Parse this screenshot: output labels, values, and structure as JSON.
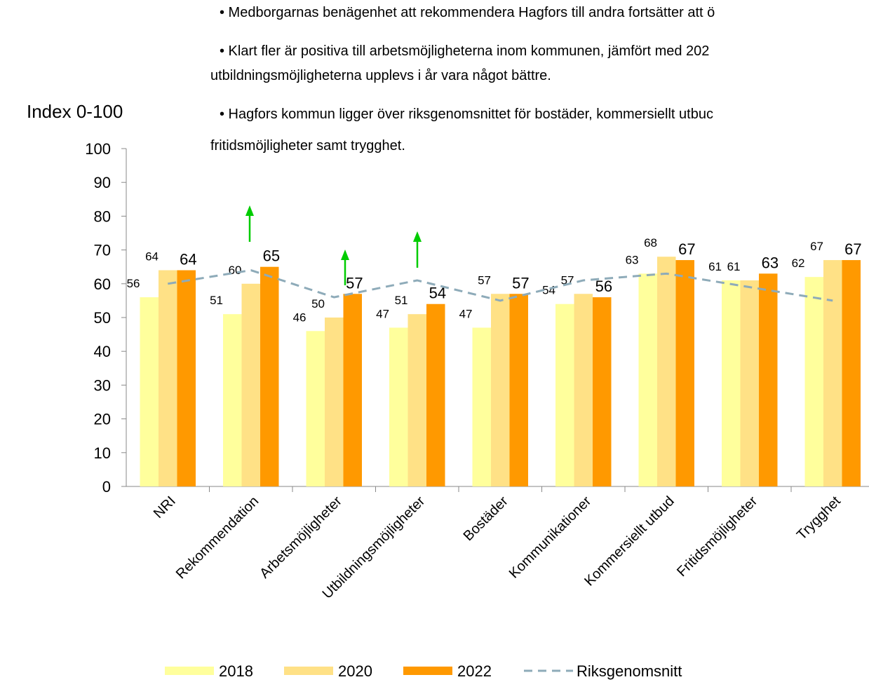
{
  "chart_data": {
    "type": "bar",
    "bullets": [
      "• Medborgarnas benägenhet att rekommendera Hagfors till andra fortsätter att ö",
      "• Klart fler är positiva till arbetsmöjligheterna inom kommunen, jämfört med 202",
      "utbildningsmöjligheterna upplevs i år vara något bättre.",
      "• Hagfors kommun ligger över riksgenomsnittet för bostäder, kommersiellt utbuc",
      "fritidsmöjligheter samt trygghet."
    ],
    "y_label": "Index 0-100",
    "categories": [
      "NRI",
      "Rekommendation",
      "Arbetsmöjligheter",
      "Utbildningsmöjligheter",
      "Bostäder",
      "Kommunikationer",
      "Kommersiellt utbud",
      "Fritidsmöjligheter",
      "Trygghet"
    ],
    "series": [
      {
        "name": "2018",
        "color": "#ffff9c",
        "values": [
          56,
          51,
          46,
          47,
          47,
          54,
          63,
          61,
          62
        ]
      },
      {
        "name": "2020",
        "color": "#ffe186",
        "values": [
          64,
          60,
          50,
          51,
          57,
          57,
          68,
          61,
          67
        ]
      },
      {
        "name": "2022",
        "color": "#ff9900",
        "values": [
          64,
          65,
          57,
          54,
          57,
          56,
          67,
          63,
          67
        ]
      },
      {
        "name": "Riksgenomsnitt",
        "type": "line",
        "color": "#8eabb9",
        "values": [
          60,
          64,
          56,
          61,
          55,
          61,
          63,
          59,
          55
        ]
      }
    ],
    "ylim": [
      0,
      100
    ],
    "yticks": [
      0,
      10,
      20,
      30,
      40,
      50,
      60,
      70,
      80,
      90,
      100
    ]
  }
}
